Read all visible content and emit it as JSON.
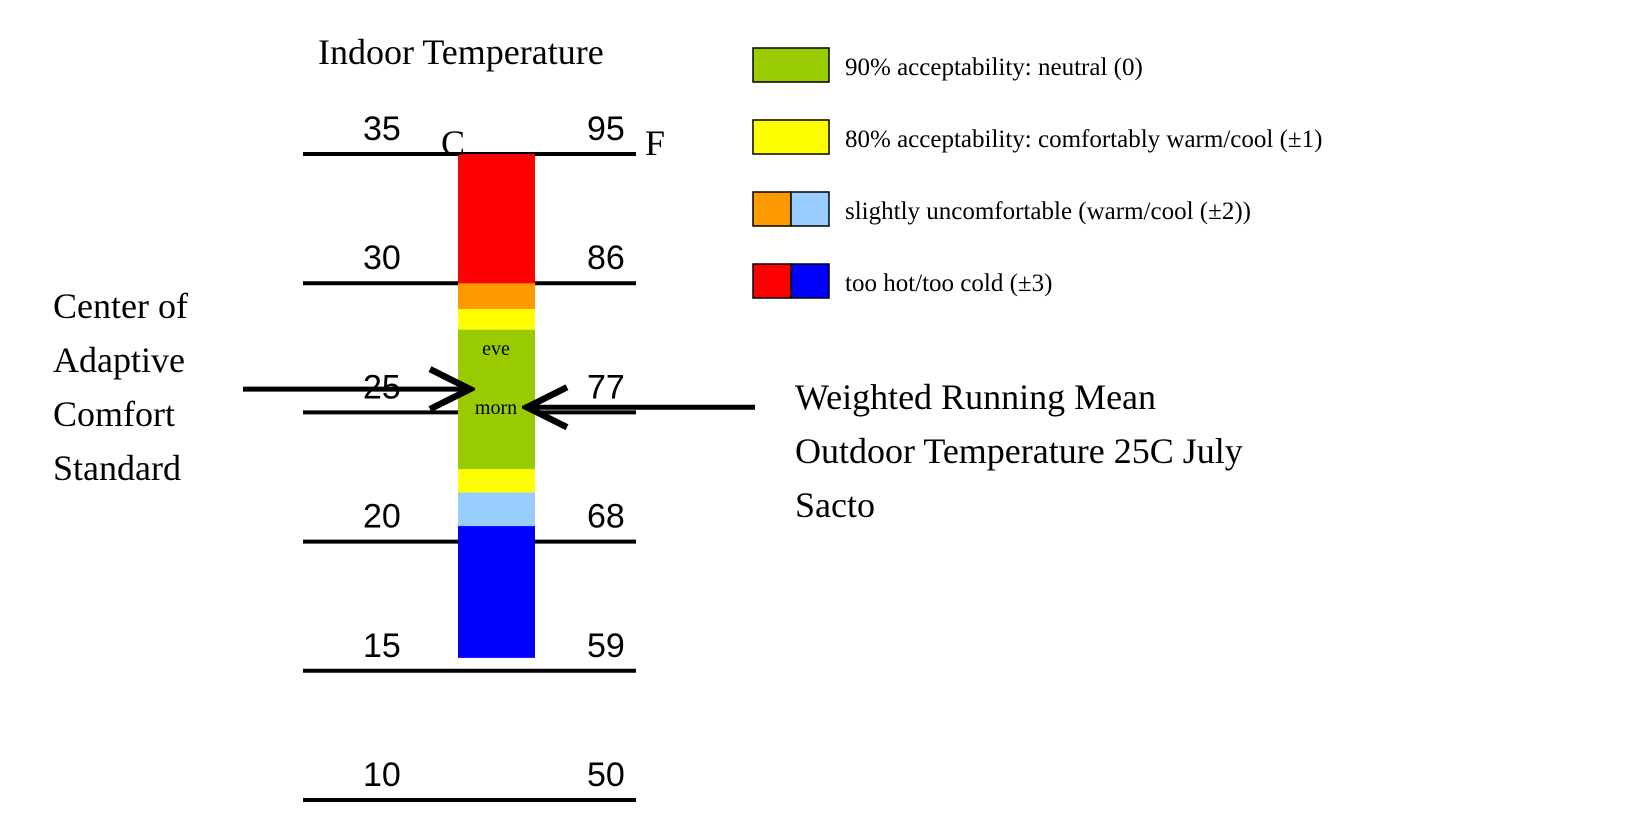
{
  "title": "Indoor Temperature",
  "scale": {
    "celsius_unit": "C",
    "fahrenheit_unit": "F",
    "ticks": [
      {
        "c": 35,
        "c_label": "35",
        "f_label": "95"
      },
      {
        "c": 30,
        "c_label": "30",
        "f_label": "86"
      },
      {
        "c": 25,
        "c_label": "25",
        "f_label": "77"
      },
      {
        "c": 20,
        "c_label": "20",
        "f_label": "68"
      },
      {
        "c": 15,
        "c_label": "15",
        "f_label": "59"
      },
      {
        "c": 10,
        "c_label": "10",
        "f_label": "50"
      }
    ]
  },
  "bands": [
    {
      "from_c": 30.0,
      "to_c": 35.0,
      "color": "#ff0000",
      "meaning": "too hot"
    },
    {
      "from_c": 29.0,
      "to_c": 30.0,
      "color": "#ff9900",
      "meaning": "slightly warm"
    },
    {
      "from_c": 28.2,
      "to_c": 29.0,
      "color": "#ffff00",
      "meaning": "comfortably warm"
    },
    {
      "from_c": 22.8,
      "to_c": 28.2,
      "color": "#99cc00",
      "meaning": "neutral"
    },
    {
      "from_c": 21.9,
      "to_c": 22.8,
      "color": "#ffff00",
      "meaning": "comfortably cool"
    },
    {
      "from_c": 20.6,
      "to_c": 21.9,
      "color": "#99ccff",
      "meaning": "slightly cool"
    },
    {
      "from_c": 15.5,
      "to_c": 20.6,
      "color": "#0000ff",
      "meaning": "too cold"
    }
  ],
  "bar_labels": {
    "evening": {
      "text": "eve",
      "c": 27.5
    },
    "morning": {
      "text": "morn",
      "c": 25.2
    }
  },
  "left_note": {
    "lines": [
      "Center of",
      "Adaptive",
      "Comfort",
      "Standard"
    ],
    "arrow_c": 25.9
  },
  "right_note": {
    "lines": [
      "Weighted Running Mean",
      "Outdoor Temperature 25C July",
      "Sacto"
    ],
    "arrow_c": 25.2
  },
  "legend": [
    {
      "colors": [
        "#99cc00"
      ],
      "text": "90% acceptability: neutral (0)"
    },
    {
      "colors": [
        "#ffff00"
      ],
      "text": "80% acceptability: comfortably warm/cool (±1)"
    },
    {
      "colors": [
        "#ff9900",
        "#99ccff"
      ],
      "text": "slightly uncomfortable (warm/cool (±2))"
    },
    {
      "colors": [
        "#ff0000",
        "#0000ff"
      ],
      "text": "too hot/too cold (±3)"
    }
  ]
}
